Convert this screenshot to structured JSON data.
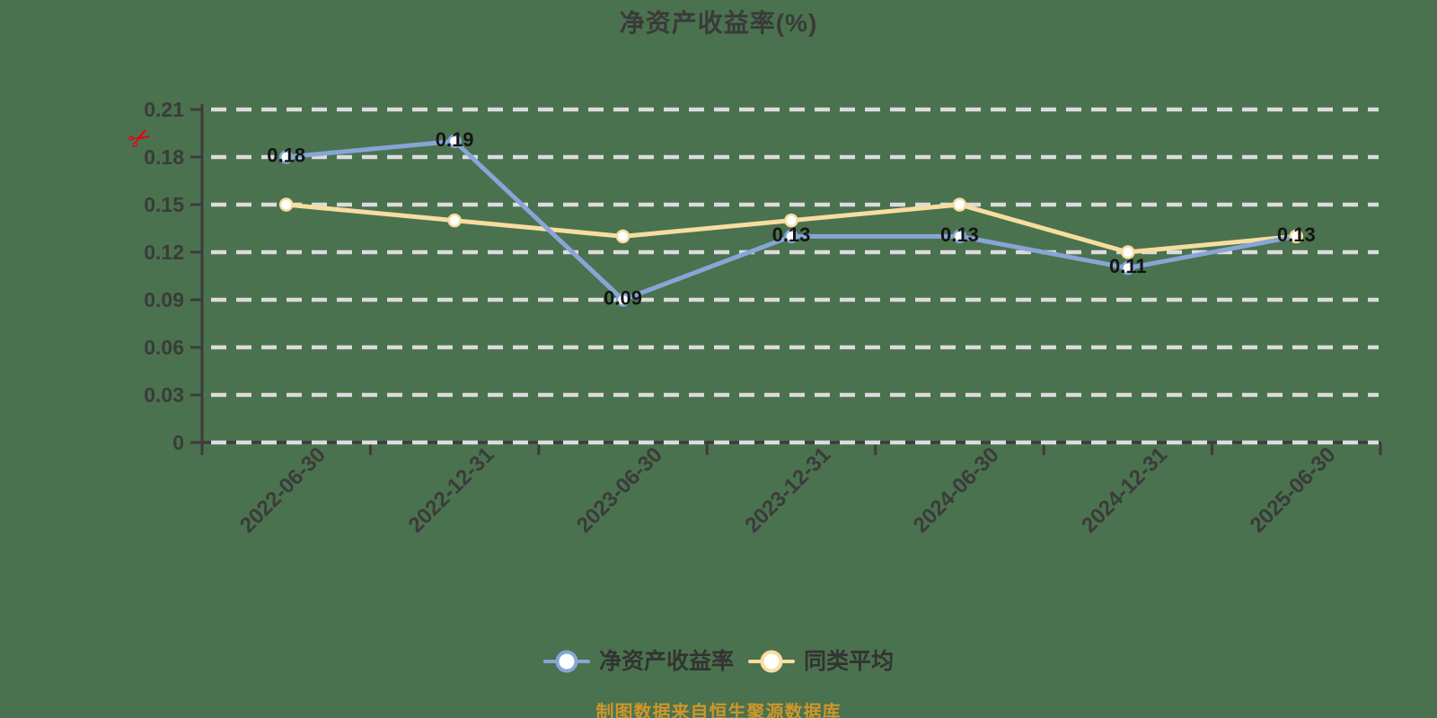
{
  "title": "净资产收益率(%)",
  "icons": {
    "scissors": "✂"
  },
  "chart_data": {
    "type": "line",
    "title": "净资产收益率(%)",
    "categories": [
      "2022-06-30",
      "2022-12-31",
      "2023-06-30",
      "2023-12-31",
      "2024-06-30",
      "2024-12-31",
      "2025-06-30"
    ],
    "series": [
      {
        "name": "净资产收益率",
        "color": "#87A5D7",
        "values": [
          0.18,
          0.19,
          0.09,
          0.13,
          0.13,
          0.11,
          0.13
        ],
        "point_labels": [
          "0.18",
          "0.19",
          "0.09",
          "0.13",
          "0.13",
          "0.11",
          "0.13"
        ]
      },
      {
        "name": "同类平均",
        "color": "#F7DDA0",
        "values": [
          0.15,
          0.14,
          0.13,
          0.14,
          0.15,
          0.12,
          0.13
        ],
        "point_labels": []
      }
    ],
    "ylim": [
      0,
      0.21
    ],
    "yticks": [
      {
        "value": 0,
        "label": "0"
      },
      {
        "value": 0.03,
        "label": "0.03"
      },
      {
        "value": 0.06,
        "label": "0.06"
      },
      {
        "value": 0.09,
        "label": "0.09"
      },
      {
        "value": 0.12,
        "label": "0.12"
      },
      {
        "value": 0.15,
        "label": "0.15"
      },
      {
        "value": 0.18,
        "label": "0.18"
      },
      {
        "value": 0.21,
        "label": "0.21"
      }
    ],
    "grid": true,
    "legend_position": "bottom",
    "xlabel": "",
    "ylabel": ""
  },
  "legend": {
    "items": [
      {
        "label": "净资产收益率",
        "color": "#87A5D7"
      },
      {
        "label": "同类平均",
        "color": "#F7DDA0"
      }
    ]
  },
  "footer": {
    "text": "制图数据来自恒生聚源数据库"
  },
  "colors": {
    "background": "#4A724E",
    "axis": "#3C3C3C",
    "grid": "#DCDCDC",
    "tick_label": "#3B3B3B",
    "data_label": "#141414",
    "title_text": "#3A3A3A",
    "legend_text": "#333333",
    "footer_text": "#CE962C",
    "scissors": "#E60012",
    "marker_fill": "#FFFFFF"
  }
}
